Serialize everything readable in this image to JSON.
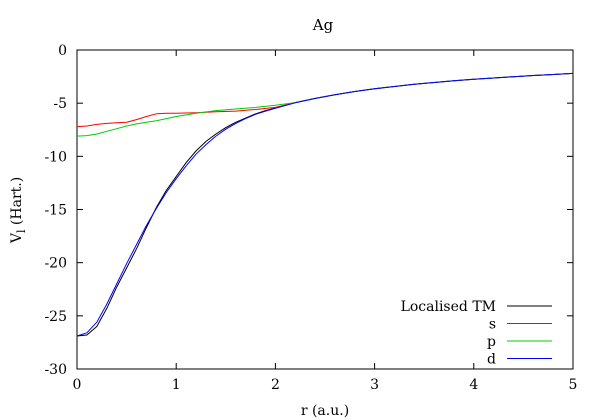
{
  "chart_data": {
    "type": "line",
    "title": "Ag",
    "xlabel": "r (a.u.)",
    "ylabel": {
      "main": "V",
      "sub": "l",
      "unit": " (Hart.)"
    },
    "xlim": [
      0,
      5
    ],
    "ylim": [
      -30,
      0
    ],
    "xticks": [
      0,
      1,
      2,
      3,
      4,
      5
    ],
    "yticks": [
      0,
      -5,
      -10,
      -15,
      -20,
      -25,
      -30
    ],
    "grid": false,
    "legend_position": "bottom-right",
    "series": [
      {
        "name": "Localised TM",
        "color": "#000000",
        "x": [
          0,
          0.1,
          0.2,
          0.3,
          0.4,
          0.5,
          0.6,
          0.7,
          0.8,
          0.9,
          1.0,
          1.1,
          1.2,
          1.3,
          1.4,
          1.5,
          1.6,
          1.7,
          1.8,
          1.9,
          2.0,
          2.2,
          2.4,
          2.6,
          2.8,
          3.0,
          3.2,
          3.4,
          3.6,
          3.8,
          4.0,
          4.2,
          4.4,
          4.6,
          4.8,
          5.0
        ],
        "y": [
          -26.9,
          -26.8,
          -26.0,
          -24.3,
          -22.3,
          -20.5,
          -18.7,
          -16.7,
          -14.8,
          -13.2,
          -11.9,
          -10.6,
          -9.5,
          -8.6,
          -7.9,
          -7.3,
          -6.8,
          -6.4,
          -6.0,
          -5.7,
          -5.45,
          -4.95,
          -4.55,
          -4.2,
          -3.9,
          -3.65,
          -3.43,
          -3.23,
          -3.06,
          -2.9,
          -2.76,
          -2.63,
          -2.51,
          -2.4,
          -2.3,
          -2.2
        ]
      },
      {
        "name": "s",
        "color": "#ff0000",
        "x": [
          0,
          0.1,
          0.2,
          0.3,
          0.4,
          0.5,
          0.6,
          0.7,
          0.8,
          0.9,
          1.0,
          1.2,
          1.4,
          1.6,
          1.8,
          2.0,
          2.2,
          2.4,
          2.6,
          2.8,
          3.0,
          3.2,
          3.4,
          3.6,
          3.8,
          4.0,
          4.2,
          4.4,
          4.6,
          4.8,
          5.0
        ],
        "y": [
          -7.2,
          -7.15,
          -7.0,
          -6.9,
          -6.85,
          -6.8,
          -6.55,
          -6.25,
          -6.0,
          -5.95,
          -5.95,
          -5.9,
          -5.8,
          -5.75,
          -5.6,
          -5.4,
          -4.95,
          -4.55,
          -4.2,
          -3.9,
          -3.65,
          -3.43,
          -3.23,
          -3.06,
          -2.9,
          -2.76,
          -2.63,
          -2.51,
          -2.4,
          -2.3,
          -2.2
        ]
      },
      {
        "name": "p",
        "color": "#00cc00",
        "x": [
          0,
          0.1,
          0.2,
          0.3,
          0.4,
          0.5,
          0.6,
          0.7,
          0.8,
          0.9,
          1.0,
          1.2,
          1.4,
          1.6,
          1.8,
          2.0,
          2.2,
          2.4,
          2.6,
          2.8,
          3.0,
          3.2,
          3.4,
          3.6,
          3.8,
          4.0,
          4.2,
          4.4,
          4.6,
          4.8,
          5.0
        ],
        "y": [
          -8.1,
          -8.05,
          -7.9,
          -7.65,
          -7.4,
          -7.15,
          -6.95,
          -6.8,
          -6.65,
          -6.45,
          -6.25,
          -5.95,
          -5.7,
          -5.55,
          -5.4,
          -5.2,
          -4.95,
          -4.55,
          -4.2,
          -3.9,
          -3.65,
          -3.43,
          -3.23,
          -3.06,
          -2.9,
          -2.76,
          -2.63,
          -2.51,
          -2.4,
          -2.3,
          -2.2
        ]
      },
      {
        "name": "d",
        "color": "#0000ff",
        "x": [
          0,
          0.1,
          0.2,
          0.3,
          0.4,
          0.5,
          0.6,
          0.7,
          0.8,
          0.9,
          1.0,
          1.1,
          1.2,
          1.3,
          1.4,
          1.5,
          1.6,
          1.7,
          1.8,
          1.9,
          2.0,
          2.2,
          2.4,
          2.6,
          2.8,
          3.0,
          3.2,
          3.4,
          3.6,
          3.8,
          4.0,
          4.2,
          4.4,
          4.6,
          4.8,
          5.0
        ],
        "y": [
          -26.9,
          -26.6,
          -25.6,
          -23.9,
          -22.0,
          -20.1,
          -18.3,
          -16.5,
          -14.9,
          -13.4,
          -12.1,
          -10.9,
          -9.8,
          -8.9,
          -8.1,
          -7.45,
          -6.9,
          -6.45,
          -6.05,
          -5.75,
          -5.48,
          -4.97,
          -4.56,
          -4.2,
          -3.9,
          -3.65,
          -3.43,
          -3.23,
          -3.06,
          -2.9,
          -2.76,
          -2.63,
          -2.51,
          -2.4,
          -2.3,
          -2.2
        ]
      }
    ]
  }
}
